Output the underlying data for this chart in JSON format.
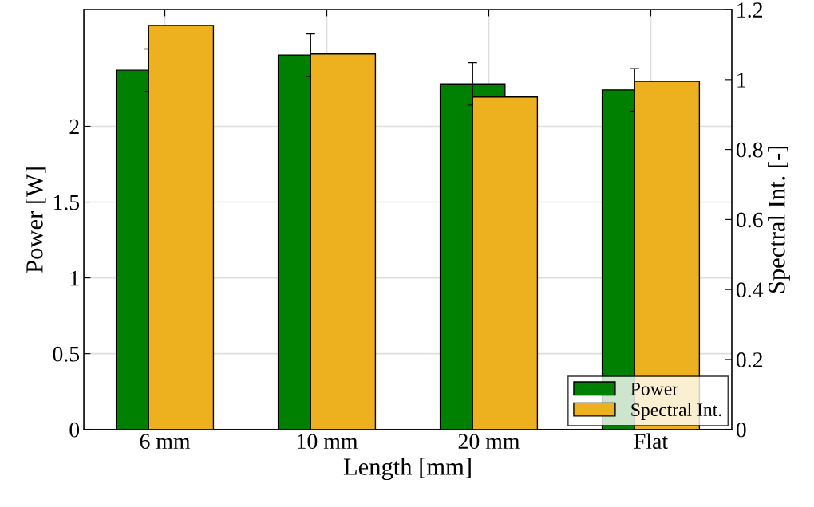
{
  "chart_data": {
    "type": "bar",
    "xlabel": "Length [mm]",
    "ylabel": "Power [W]",
    "y2label": "Spectral Int. [-]",
    "categories": [
      "6 mm",
      "10 mm",
      "20 mm",
      "Flat"
    ],
    "series": [
      {
        "name": "Power",
        "color": "#008000",
        "values": [
          2.37,
          2.47,
          2.28,
          2.24
        ],
        "errors": [
          0.14,
          0.14,
          0.14,
          0.14
        ]
      },
      {
        "name": "Spectral Int.",
        "color": "#edb120",
        "values": [
          1.155,
          1.073,
          0.95,
          0.995
        ],
        "axis": "y2"
      }
    ],
    "ylim": [
      0,
      2.77
    ],
    "yticks": [
      0,
      0.5,
      1,
      1.5,
      2
    ],
    "y2lim": [
      0,
      1.2
    ],
    "y2ticks": [
      0,
      0.2,
      0.4,
      0.6,
      0.8,
      1,
      1.2
    ],
    "grid": true,
    "legend": "bottom right"
  }
}
